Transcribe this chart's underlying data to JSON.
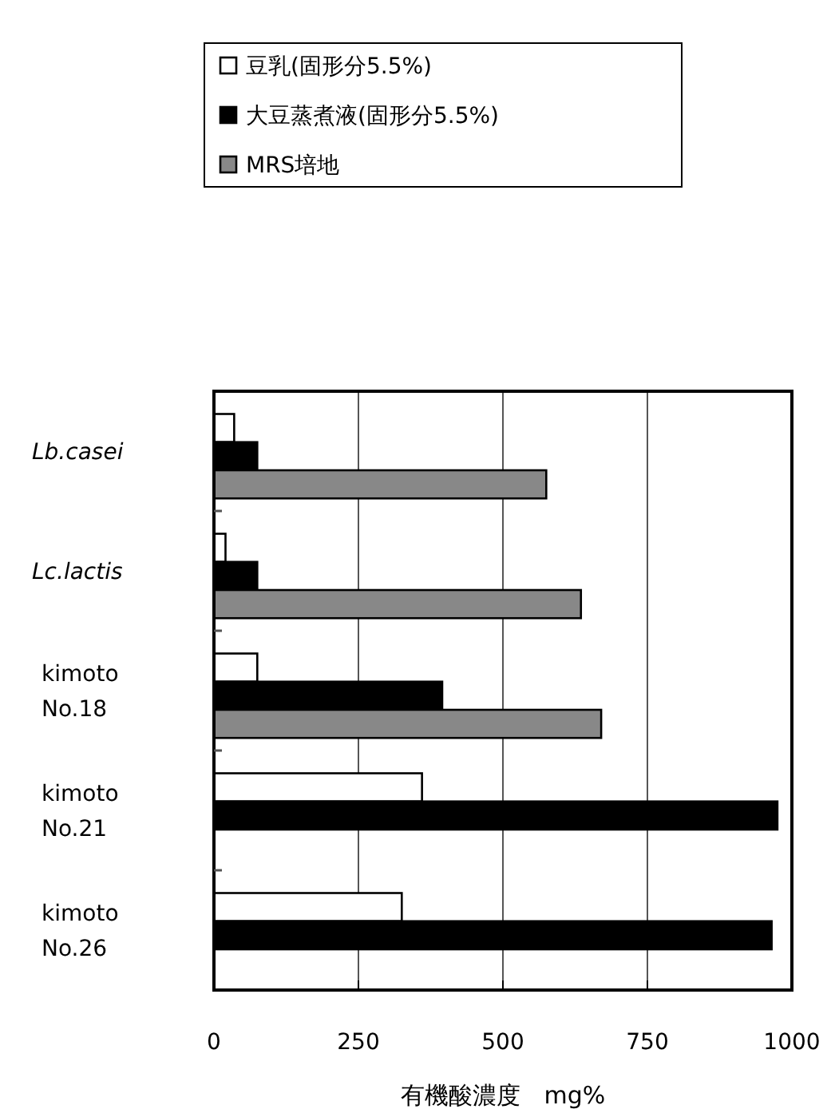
{
  "chart_data": {
    "type": "bar",
    "orientation": "horizontal",
    "categories": [
      "Lb.casei",
      "Lc.lactis",
      "kimoto\nNo.18",
      "kimoto\nNo.21",
      "kimoto\nNo.26"
    ],
    "series": [
      {
        "name": "豆乳(固形分5.5%)",
        "color": "#ffffff",
        "values": [
          35,
          20,
          75,
          360,
          325
        ]
      },
      {
        "name": "大豆蒸煮液(固形分5.5%)",
        "color": "#000000",
        "values": [
          75,
          75,
          395,
          975,
          965
        ]
      },
      {
        "name": "MRS培地",
        "color": "#888888",
        "values": [
          575,
          635,
          670,
          null,
          null
        ]
      }
    ],
    "xlabel": "有機酸濃度　mg%",
    "xlim": [
      0,
      1000
    ],
    "xticks": [
      0,
      250,
      500,
      750,
      1000
    ],
    "grid": "x",
    "legend": "top"
  }
}
